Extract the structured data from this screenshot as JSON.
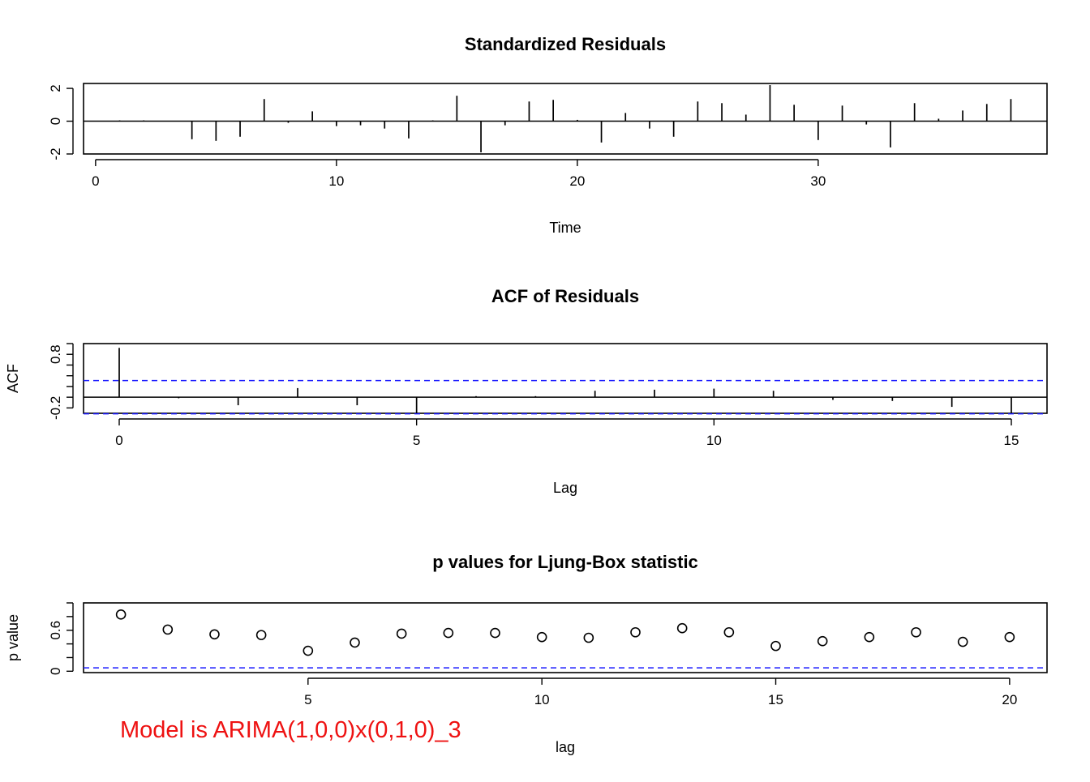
{
  "annotation": {
    "text": "Model is ARIMA(1,0,0)x(0,1,0)_3",
    "color": "#ee1111"
  },
  "chart_data": [
    {
      "id": "std-resid",
      "type": "line",
      "style": "histogram-spikes",
      "title": "Standardized Residuals",
      "xlabel": "Time",
      "ylabel": "",
      "xlim": [
        -0.5,
        39.5
      ],
      "ylim": [
        -2.0,
        2.3
      ],
      "xticks": [
        0,
        10,
        20,
        30
      ],
      "yticks": [
        -2,
        0,
        2
      ],
      "baseline": 0,
      "x": [
        1,
        2,
        3,
        4,
        5,
        6,
        7,
        8,
        9,
        10,
        11,
        12,
        13,
        14,
        15,
        16,
        17,
        18,
        19,
        20,
        21,
        22,
        23,
        24,
        25,
        26,
        27,
        28,
        29,
        30,
        31,
        32,
        33,
        34,
        35,
        36,
        37,
        38
      ],
      "values": [
        0.05,
        0.05,
        0.02,
        -1.1,
        -1.2,
        -0.95,
        1.35,
        -0.1,
        0.6,
        -0.3,
        -0.25,
        -0.45,
        -1.05,
        0.05,
        1.55,
        -1.9,
        -0.25,
        1.2,
        1.3,
        0.08,
        -1.3,
        0.5,
        -0.45,
        -0.95,
        1.2,
        1.1,
        0.4,
        2.2,
        1.0,
        -1.15,
        0.95,
        -0.2,
        -1.6,
        1.1,
        0.15,
        0.65,
        1.05,
        1.35
      ]
    },
    {
      "id": "acf",
      "type": "bar",
      "style": "histogram-spikes",
      "title": "ACF of Residuals",
      "xlabel": "Lag",
      "ylabel": "ACF",
      "xlim": [
        -0.6,
        15.6
      ],
      "ylim": [
        -0.3,
        1.0
      ],
      "xticks": [
        0,
        5,
        10,
        15
      ],
      "yticks": [
        -0.2,
        0.8
      ],
      "yminor": [
        0.0,
        0.2,
        0.4,
        0.6,
        1.0
      ],
      "baseline": 0,
      "conf_limits": [
        0.31,
        -0.31
      ],
      "conf_color": "#1a1aff",
      "x": [
        0,
        1,
        2,
        3,
        4,
        5,
        6,
        7,
        8,
        9,
        10,
        11,
        12,
        13,
        14,
        15
      ],
      "values": [
        0.92,
        -0.02,
        -0.15,
        0.17,
        -0.15,
        -0.3,
        0.02,
        0.02,
        0.12,
        0.14,
        0.16,
        0.12,
        -0.05,
        -0.07,
        -0.18,
        -0.3
      ]
    },
    {
      "id": "ljung-box",
      "type": "scatter",
      "title": "p values for Ljung-Box statistic",
      "xlabel": "lag",
      "ylabel": "p value",
      "xlim": [
        0.2,
        20.8
      ],
      "ylim": [
        -0.02,
        1.0
      ],
      "xticks": [
        5,
        10,
        15,
        20
      ],
      "yticks": [
        0.0,
        0.6
      ],
      "yminor": [
        0.2,
        0.4,
        0.8,
        1.0
      ],
      "threshold": 0.05,
      "threshold_color": "#1a1aff",
      "x": [
        1,
        2,
        3,
        4,
        5,
        6,
        7,
        8,
        9,
        10,
        11,
        12,
        13,
        14,
        15,
        16,
        17,
        18,
        19,
        20
      ],
      "values": [
        0.83,
        0.61,
        0.54,
        0.53,
        0.3,
        0.42,
        0.55,
        0.56,
        0.56,
        0.5,
        0.49,
        0.57,
        0.63,
        0.57,
        0.37,
        0.44,
        0.5,
        0.57,
        0.43,
        0.5
      ]
    }
  ]
}
